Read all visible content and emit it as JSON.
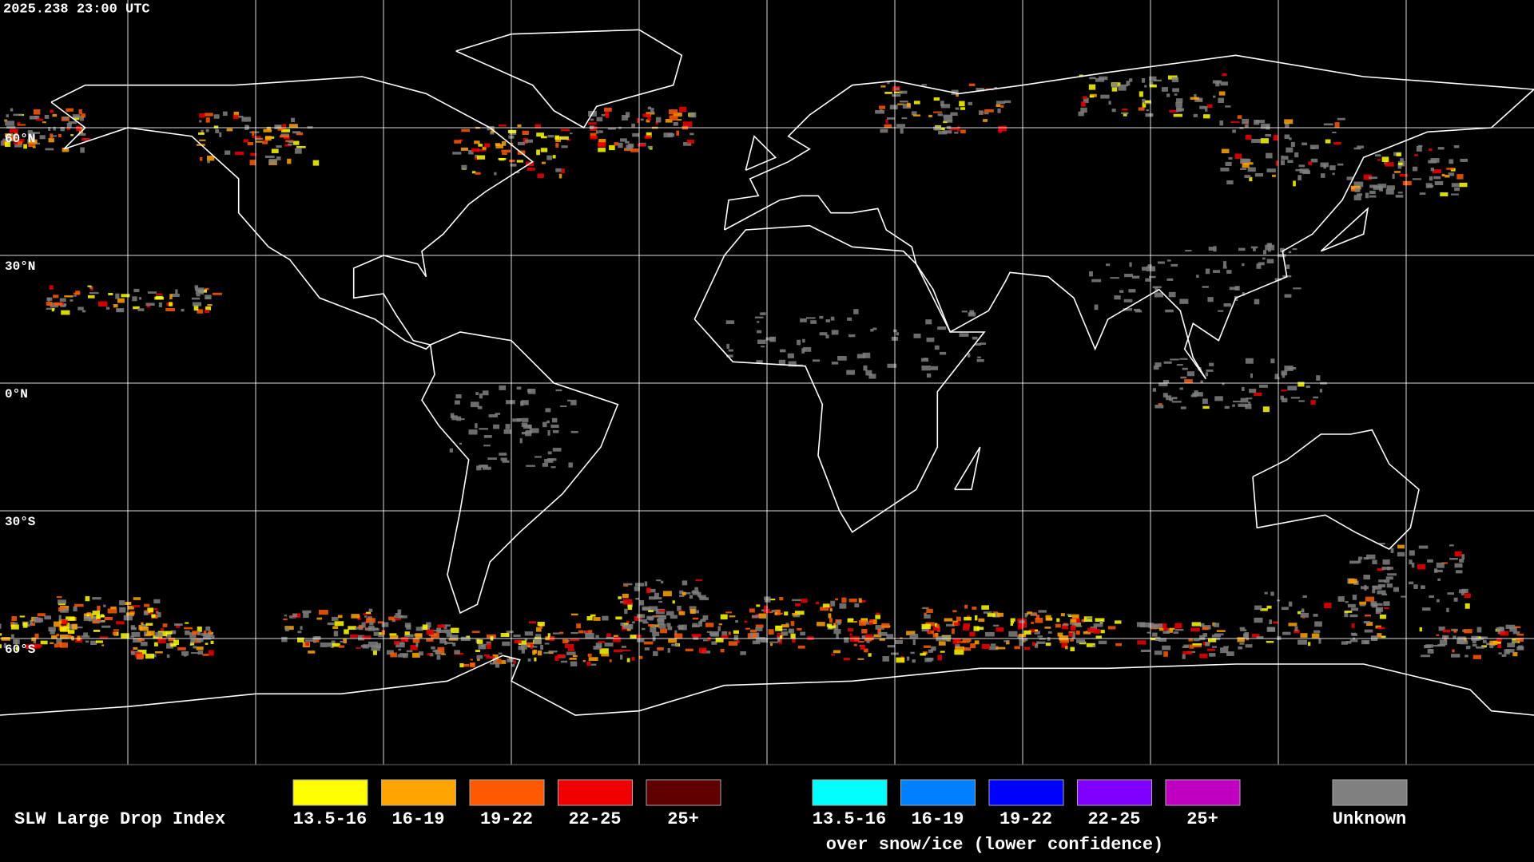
{
  "header": {
    "timestamp": "2025.238 23:00 UTC"
  },
  "map": {
    "lat_labels": [
      "60°N",
      "30°N",
      "0°N",
      "30°S",
      "60°S"
    ]
  },
  "legend": {
    "title": "SLW Large Drop Index",
    "items": [
      {
        "label": "13.5-16",
        "color": "#ffff00"
      },
      {
        "label": "16-19",
        "color": "#ffa500"
      },
      {
        "label": "19-22",
        "color": "#ff5a00"
      },
      {
        "label": "22-25",
        "color": "#f00000"
      },
      {
        "label": "25+",
        "color": "#600000"
      }
    ],
    "snow_items": [
      {
        "label": "13.5-16",
        "color": "#00ffff"
      },
      {
        "label": "16-19",
        "color": "#0080ff"
      },
      {
        "label": "19-22",
        "color": "#0000ff"
      },
      {
        "label": "22-25",
        "color": "#8000ff"
      },
      {
        "label": "25+",
        "color": "#c000c0"
      }
    ],
    "snow_note": "over snow/ice (lower confidence)",
    "unknown": {
      "label": "Unknown",
      "color": "#808080"
    }
  }
}
